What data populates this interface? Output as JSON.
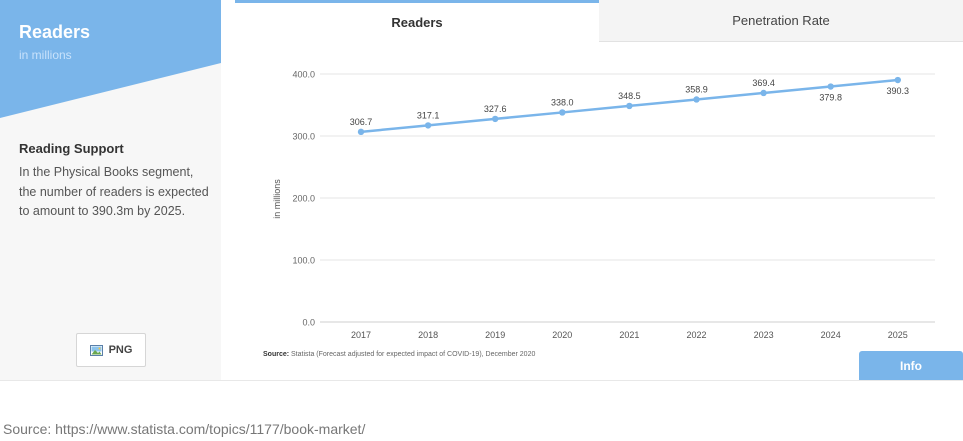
{
  "panel": {
    "title": "Readers",
    "subtitle": "in millions",
    "support_title": "Reading Support",
    "support_text": "In the Physical Books segment, the number of readers is expected to amount to 390.3m by 2025.",
    "png_label": "PNG"
  },
  "tabs": [
    {
      "label": "Readers",
      "active": true
    },
    {
      "label": "Penetration Rate",
      "active": false
    }
  ],
  "colors": {
    "accent": "#7ab5ea",
    "line": "#7ab5ea",
    "grid": "#e6e6e6"
  },
  "chart_data": {
    "type": "line",
    "categories": [
      "2017",
      "2018",
      "2019",
      "2020",
      "2021",
      "2022",
      "2023",
      "2024",
      "2025"
    ],
    "series": [
      {
        "values": [
          306.7,
          317.1,
          327.6,
          338.0,
          348.5,
          358.9,
          369.4,
          379.8,
          390.3
        ]
      }
    ],
    "value_labels": [
      "306.7",
      "317.1",
      "327.6",
      "338.0",
      "348.5",
      "358.9",
      "369.4",
      "379.8",
      "390.3"
    ],
    "ylabel": "in millions",
    "yticks": [
      "0.0",
      "100.0",
      "200.0",
      "300.0",
      "400.0"
    ],
    "ylim": [
      0,
      400
    ],
    "grid": true
  },
  "source": {
    "prefix": "Source:",
    "text": "Statista (Forecast adjusted for expected impact of COVID-19), December 2020"
  },
  "info_label": "Info",
  "page_source": "Source: https://www.statista.com/topics/1177/book-market/"
}
